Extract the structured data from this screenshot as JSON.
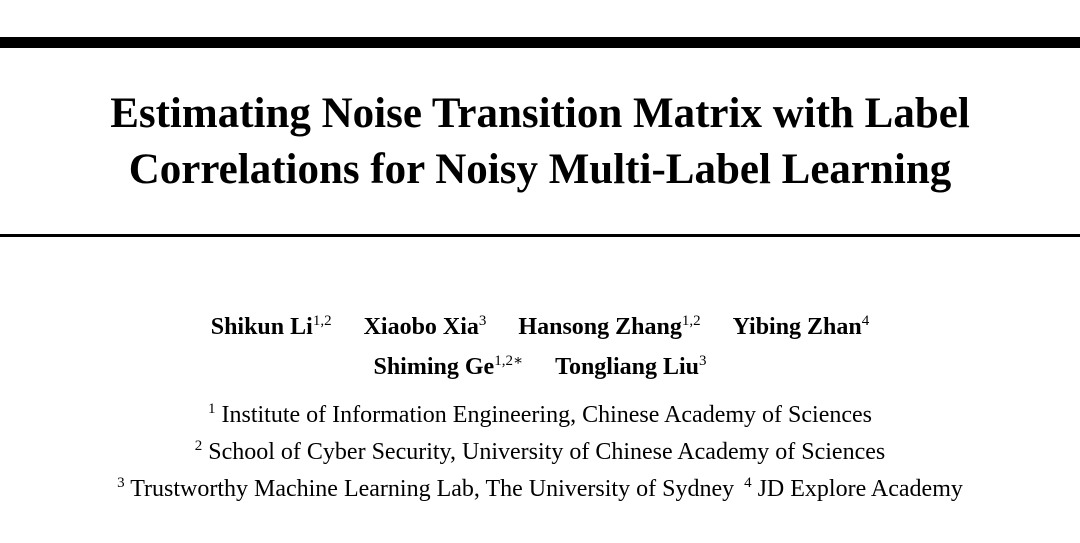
{
  "title": {
    "line1": "Estimating Noise Transition Matrix with Label",
    "line2": "Correlations for Noisy Multi-Label Learning"
  },
  "authors": {
    "row1": [
      {
        "name": "Shikun Li",
        "sup": "1,2"
      },
      {
        "name": "Xiaobo Xia",
        "sup": "3"
      },
      {
        "name": "Hansong Zhang",
        "sup": "1,2"
      },
      {
        "name": "Yibing Zhan",
        "sup": "4"
      }
    ],
    "row2": [
      {
        "name": "Shiming Ge",
        "sup": "1,2∗"
      },
      {
        "name": "Tongliang Liu",
        "sup": "3"
      }
    ]
  },
  "affiliations": [
    {
      "num": "1",
      "text": "Institute of Information Engineering, Chinese Academy of Sciences"
    },
    {
      "num": "2",
      "text": "School of Cyber Security, University of Chinese Academy of Sciences"
    },
    {
      "num": "3",
      "text": "Trustworthy Machine Learning Lab, The University of Sydney"
    },
    {
      "num": "4",
      "text": "JD Explore Academy"
    }
  ]
}
